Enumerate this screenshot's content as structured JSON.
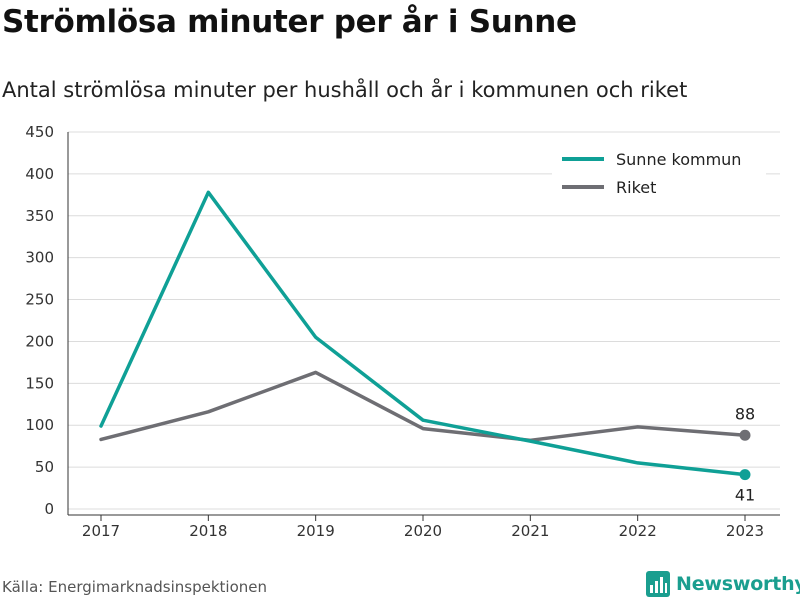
{
  "header": {
    "title": "Strömlösa minuter per år i Sunne",
    "subtitle": "Antal strömlösa minuter per hushåll och år i kommunen och riket"
  },
  "footer": {
    "source": "Källa: Energimarknadsinspektionen",
    "brand": "Newsworthy",
    "brand_icon": "bar-chart-icon"
  },
  "colors": {
    "sunne": "#0fa096",
    "riket": "#6e6e73",
    "grid": "#dcdcdc",
    "brand": "#1a9e8f"
  },
  "chart_data": {
    "type": "line",
    "x": [
      "2017",
      "2018",
      "2019",
      "2020",
      "2021",
      "2022",
      "2023"
    ],
    "ylim": [
      0,
      450
    ],
    "yticks": [
      0,
      50,
      100,
      150,
      200,
      250,
      300,
      350,
      400,
      450
    ],
    "grid": true,
    "legend_position": "top-right",
    "series": [
      {
        "name": "Sunne kommun",
        "color": "#0fa096",
        "values": [
          99,
          378,
          205,
          106,
          81,
          55,
          41
        ],
        "end_label": "41"
      },
      {
        "name": "Riket",
        "color": "#6e6e73",
        "values": [
          83,
          116,
          163,
          96,
          82,
          98,
          88
        ],
        "end_label": "88"
      }
    ]
  }
}
